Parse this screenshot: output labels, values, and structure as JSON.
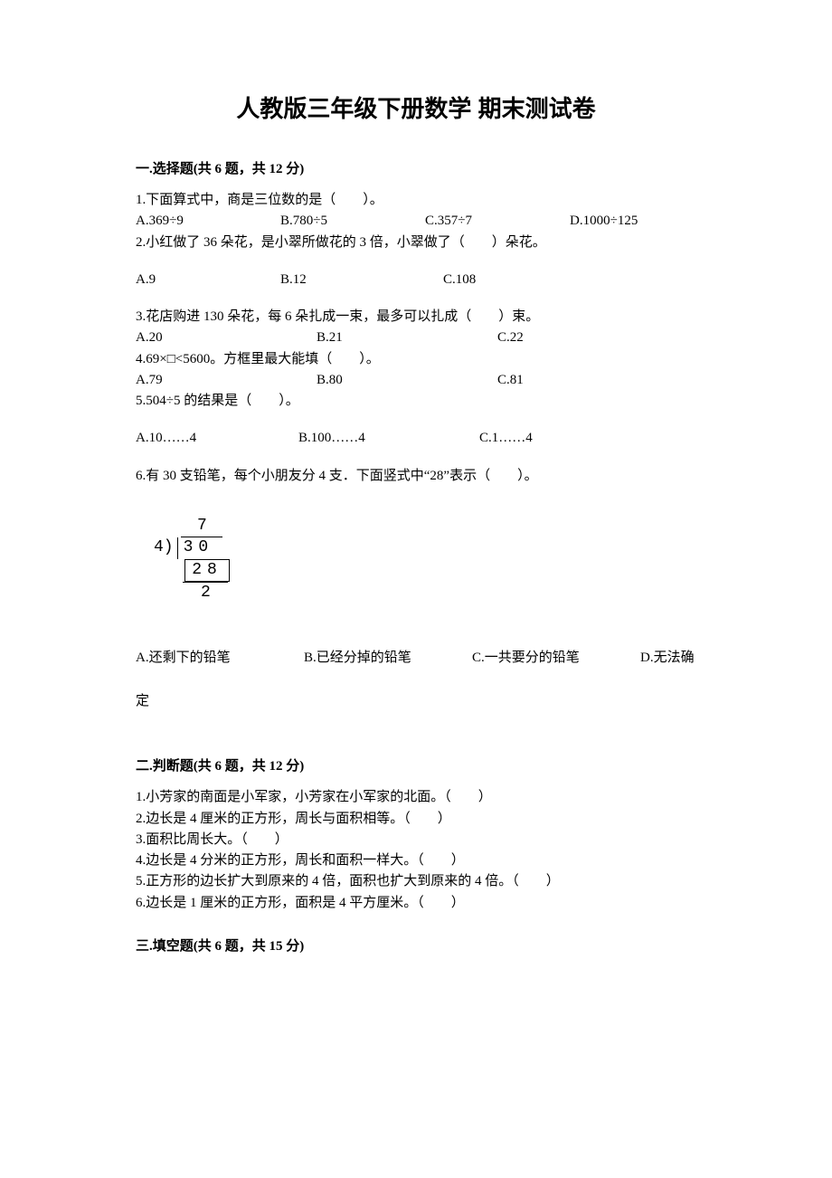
{
  "title": "人教版三年级下册数学 期末测试卷",
  "sections": {
    "s1": {
      "header": "一.选择题(共 6 题，共 12 分)"
    },
    "s2": {
      "header": "二.判断题(共 6 题，共 12 分)"
    },
    "s3": {
      "header": "三.填空题(共 6 题，共 15 分)"
    }
  },
  "choice": {
    "q1": {
      "stem": "1.下面算式中，商是三位数的是（　　）。",
      "a": "A.369÷9",
      "b": "B.780÷5",
      "c": "C.357÷7",
      "d": "D.1000÷125"
    },
    "q2": {
      "stem": "2.小红做了 36 朵花，是小翠所做花的 3 倍，小翠做了（　　）朵花。",
      "a": "A.9",
      "b": "B.12",
      "c": "C.108"
    },
    "q3": {
      "stem": "3.花店购进 130 朵花，每 6 朵扎成一束，最多可以扎成（　　）束。",
      "a": "A.20",
      "b": "B.21",
      "c": "C.22"
    },
    "q4": {
      "stem": "4.69×□<5600。方框里最大能填（　　）。",
      "a": "A.79",
      "b": "B.80",
      "c": "C.81"
    },
    "q5": {
      "stem": "5.504÷5 的结果是（　　）。",
      "a": "A.10……4",
      "b": "B.100……4",
      "c": "C.1……4"
    },
    "q6": {
      "stem": "6.有 30 支铅笔，每个小朋友分 4 支．下面竖式中“28”表示（　　）。",
      "a": "A.还剩下的铅笔",
      "b": "B.已经分掉的铅笔",
      "c": "C.一共要分的铅笔",
      "d_part1": "D.无法确",
      "d_part2": "定"
    }
  },
  "division": {
    "quotient": "7",
    "divisor": "4)",
    "dividend": "30",
    "sub": "28",
    "remainder": "2"
  },
  "judge": {
    "q1": "1.小芳家的南面是小军家，小芳家在小军家的北面。（　　）",
    "q2": "2.边长是 4 厘米的正方形，周长与面积相等。（　　）",
    "q3": "3.面积比周长大。（　　）",
    "q4": "4.边长是 4 分米的正方形，周长和面积一样大。（　　）",
    "q5": "5.正方形的边长扩大到原来的 4 倍，面积也扩大到原来的 4 倍。（　　）",
    "q6": "6.边长是 1 厘米的正方形，面积是 4 平方厘米。（　　）"
  }
}
